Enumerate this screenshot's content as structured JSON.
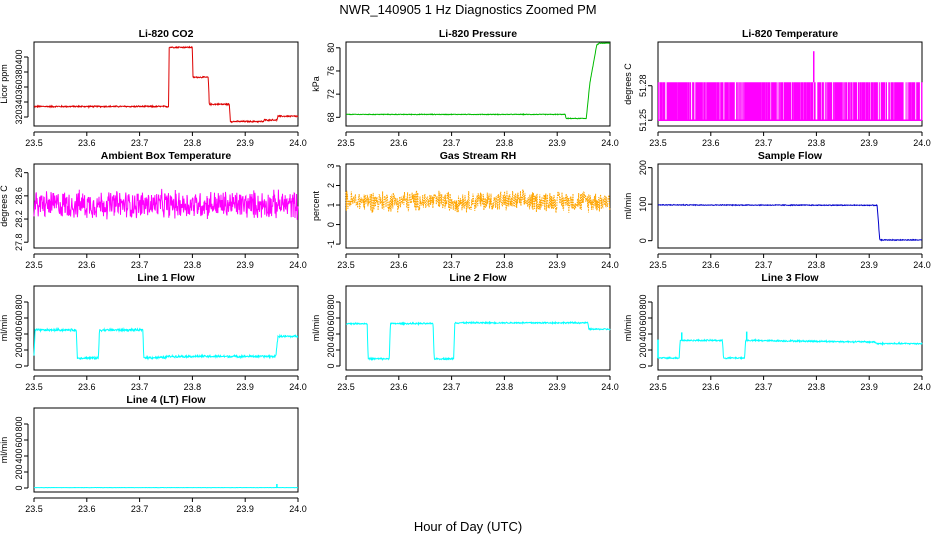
{
  "figure": {
    "title": "NWR_140905  1 Hz Diagnostics Zoomed PM",
    "xlabel": "Hour of Day (UTC)"
  },
  "chart_data": [
    {
      "type": "line",
      "title": "Li-820 CO2",
      "ylabel": "Licor ppm",
      "color": "#dd0000",
      "xlim": [
        23.5,
        24.0
      ],
      "ylim": [
        308,
        420
      ],
      "xticks": [
        "23.5",
        "23.6",
        "23.7",
        "23.8",
        "23.9",
        "24.0"
      ],
      "yticks": [
        320,
        340,
        360,
        380,
        400
      ],
      "x": [
        23.5,
        23.755,
        23.756,
        23.8,
        23.801,
        23.83,
        23.832,
        23.87,
        23.872,
        23.935,
        23.936,
        23.96,
        23.962,
        24.0
      ],
      "y": [
        334,
        334,
        413,
        413,
        373,
        373,
        337,
        337,
        314,
        314,
        316,
        316,
        321,
        321
      ],
      "noise": 0.8
    },
    {
      "type": "line",
      "title": "Li-820 Pressure",
      "ylabel": "kPa",
      "color": "#00bb00",
      "xlim": [
        23.5,
        24.0
      ],
      "ylim": [
        66.5,
        81
      ],
      "xticks": [
        "23.5",
        "23.6",
        "23.7",
        "23.8",
        "23.9",
        "24.0"
      ],
      "yticks": [
        68,
        72,
        76,
        80
      ],
      "x": [
        23.5,
        23.915,
        23.917,
        23.955,
        23.962,
        23.975,
        23.98,
        24.0
      ],
      "y": [
        68.5,
        68.5,
        67.8,
        67.8,
        74,
        80.5,
        80.8,
        80.8
      ],
      "noise": 0.05
    },
    {
      "type": "line",
      "title": "Li-820 Temperature",
      "ylabel": "degrees C",
      "color": "#ff00ff",
      "xlim": [
        23.5,
        24.0
      ],
      "ylim": [
        51.245,
        51.318
      ],
      "xticks": [
        "23.5",
        "23.6",
        "23.7",
        "23.8",
        "23.9",
        "24.0"
      ],
      "yticks": [
        51.25,
        51.28
      ],
      "x": [
        23.5,
        24.0
      ],
      "y": [
        51.25,
        51.283
      ],
      "quantized": true,
      "spike": {
        "x": 23.795,
        "y": 51.31
      }
    },
    {
      "type": "line",
      "title": "Ambient Box Temperature",
      "ylabel": "degrees C",
      "color": "#ff00ff",
      "xlim": [
        23.5,
        24.0
      ],
      "ylim": [
        27.7,
        29.15
      ],
      "xticks": [
        "23.5",
        "23.6",
        "23.7",
        "23.8",
        "23.9",
        "24.0"
      ],
      "yticks": [
        27.8,
        28.2,
        28.6,
        29.0
      ],
      "x": [
        23.5,
        24.0
      ],
      "y": [
        28.45,
        28.45
      ],
      "noise": 0.2
    },
    {
      "type": "line",
      "title": "Gas Stream RH",
      "ylabel": "percent",
      "color": "#ffa500",
      "xlim": [
        23.5,
        24.0
      ],
      "ylim": [
        -1.2,
        3.1
      ],
      "xticks": [
        "23.5",
        "23.6",
        "23.7",
        "23.8",
        "23.9",
        "24.0"
      ],
      "yticks": [
        -1,
        0,
        1,
        2,
        3
      ],
      "x": [
        23.5,
        24.0
      ],
      "y": [
        1.2,
        1.2
      ],
      "noise": 0.45,
      "dotted": true
    },
    {
      "type": "line",
      "title": "Sample Flow",
      "ylabel": "ml/min",
      "color": "#0000cc",
      "xlim": [
        23.5,
        24.0
      ],
      "ylim": [
        -20,
        210
      ],
      "xticks": [
        "23.5",
        "23.6",
        "23.7",
        "23.8",
        "23.9",
        "24.0"
      ],
      "yticks": [
        0,
        100,
        200
      ],
      "x": [
        23.5,
        23.915,
        23.92,
        24.0
      ],
      "y": [
        98,
        97,
        2,
        2
      ],
      "noise": 1
    },
    {
      "type": "line",
      "title": "Line 1 Flow",
      "ylabel": "ml/min",
      "color": "#00ffff",
      "xlim": [
        23.5,
        24.0
      ],
      "ylim": [
        -50,
        1000
      ],
      "xticks": [
        "23.5",
        "23.6",
        "23.7",
        "23.8",
        "23.9",
        "24.0"
      ],
      "yticks": [
        0,
        200,
        400,
        600,
        800
      ],
      "x": [
        23.5,
        23.502,
        23.58,
        23.582,
        23.622,
        23.624,
        23.706,
        23.708,
        23.75,
        23.752,
        23.958,
        23.962,
        24.0
      ],
      "y": [
        120,
        450,
        450,
        100,
        100,
        450,
        450,
        105,
        105,
        120,
        120,
        370,
        370
      ],
      "noise": 12
    },
    {
      "type": "line",
      "title": "Line 2 Flow",
      "ylabel": "ml/min",
      "color": "#00ffff",
      "xlim": [
        23.5,
        24.0
      ],
      "ylim": [
        -50,
        1000
      ],
      "xticks": [
        "23.5",
        "23.6",
        "23.7",
        "23.8",
        "23.9",
        "24.0"
      ],
      "yticks": [
        0,
        200,
        400,
        600,
        800
      ],
      "x": [
        23.5,
        23.54,
        23.542,
        23.582,
        23.584,
        23.665,
        23.667,
        23.704,
        23.706,
        23.958,
        23.96,
        24.0
      ],
      "y": [
        530,
        530,
        90,
        90,
        530,
        530,
        90,
        90,
        540,
        540,
        460,
        460
      ],
      "noise": 8
    },
    {
      "type": "line",
      "title": "Line 3 Flow",
      "ylabel": "ml/min",
      "color": "#00ffff",
      "xlim": [
        23.5,
        24.0
      ],
      "ylim": [
        -50,
        1000
      ],
      "xticks": [
        "23.5",
        "23.6",
        "23.7",
        "23.8",
        "23.9",
        "24.0"
      ],
      "yticks": [
        0,
        200,
        400,
        600,
        800
      ],
      "x": [
        23.5,
        23.502,
        23.54,
        23.542,
        23.622,
        23.624,
        23.664,
        23.666,
        23.91,
        23.915,
        24.0
      ],
      "y": [
        100,
        100,
        100,
        320,
        320,
        100,
        100,
        320,
        300,
        280,
        280
      ],
      "noise": 8,
      "spikes": [
        {
          "x": 23.5,
          "y": 330
        },
        {
          "x": 23.545,
          "y": 420
        },
        {
          "x": 23.668,
          "y": 430
        }
      ]
    },
    {
      "type": "line",
      "title": "Line 4 (LT) Flow",
      "ylabel": "ml/min",
      "color": "#00ffff",
      "xlim": [
        23.5,
        24.0
      ],
      "ylim": [
        -50,
        1000
      ],
      "xticks": [
        "23.5",
        "23.6",
        "23.7",
        "23.8",
        "23.9",
        "24.0"
      ],
      "yticks": [
        0,
        200,
        400,
        600,
        800
      ],
      "x": [
        23.5,
        24.0
      ],
      "y": [
        5,
        5
      ],
      "noise": 1,
      "spikes": [
        {
          "x": 23.96,
          "y": 50
        }
      ]
    }
  ]
}
